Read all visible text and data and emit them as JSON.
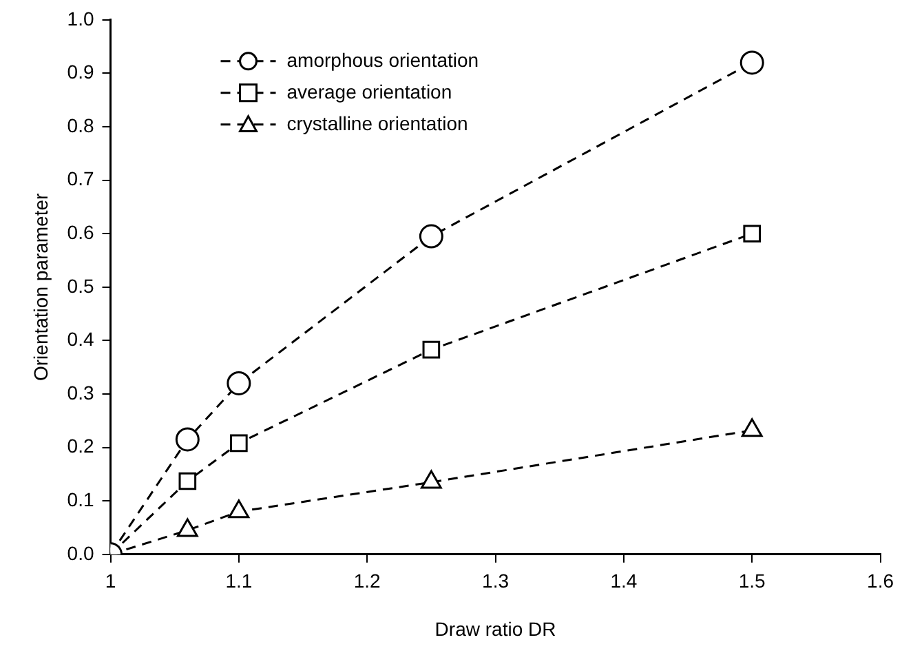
{
  "chart_data": {
    "type": "line",
    "xlabel": "Draw ratio DR",
    "ylabel": "Orientation parameter",
    "x": [
      1,
      1.06,
      1.1,
      1.25,
      1.5
    ],
    "series": [
      {
        "name": "amorphous orientation",
        "color": "#000000",
        "marker": "circle",
        "values": [
          0,
          0.215,
          0.32,
          0.595,
          0.92
        ]
      },
      {
        "name": "average orientation",
        "color": "#000000",
        "marker": "square",
        "values": [
          0,
          0.137,
          0.208,
          0.383,
          0.6
        ]
      },
      {
        "name": "crystalline orientation",
        "color": "#000000",
        "marker": "triangle",
        "values": [
          0,
          0.045,
          0.08,
          0.135,
          0.232
        ]
      }
    ],
    "xlim": [
      1,
      1.6
    ],
    "xticks": [
      1,
      1.1,
      1.2,
      1.3,
      1.4,
      1.5,
      1.6
    ],
    "ylim": [
      0,
      1
    ],
    "yticks": [
      {
        "value": 0,
        "label": "0.0"
      },
      {
        "value": 0.1,
        "label": "0.1"
      },
      {
        "value": 0.2,
        "label": "0.2"
      },
      {
        "value": 0.3,
        "label": "0.3"
      },
      {
        "value": 0.4,
        "label": "0.4"
      },
      {
        "value": 0.5,
        "label": "0.5"
      },
      {
        "value": 0.6,
        "label": "0.6"
      },
      {
        "value": 0.7,
        "label": "0.7"
      },
      {
        "value": 0.8,
        "label": "0.8"
      },
      {
        "value": 0.9,
        "label": "0.9"
      },
      {
        "value": 1,
        "label": "1.0"
      }
    ],
    "grid": false,
    "legend": "top left",
    "line_style": "dashed"
  }
}
